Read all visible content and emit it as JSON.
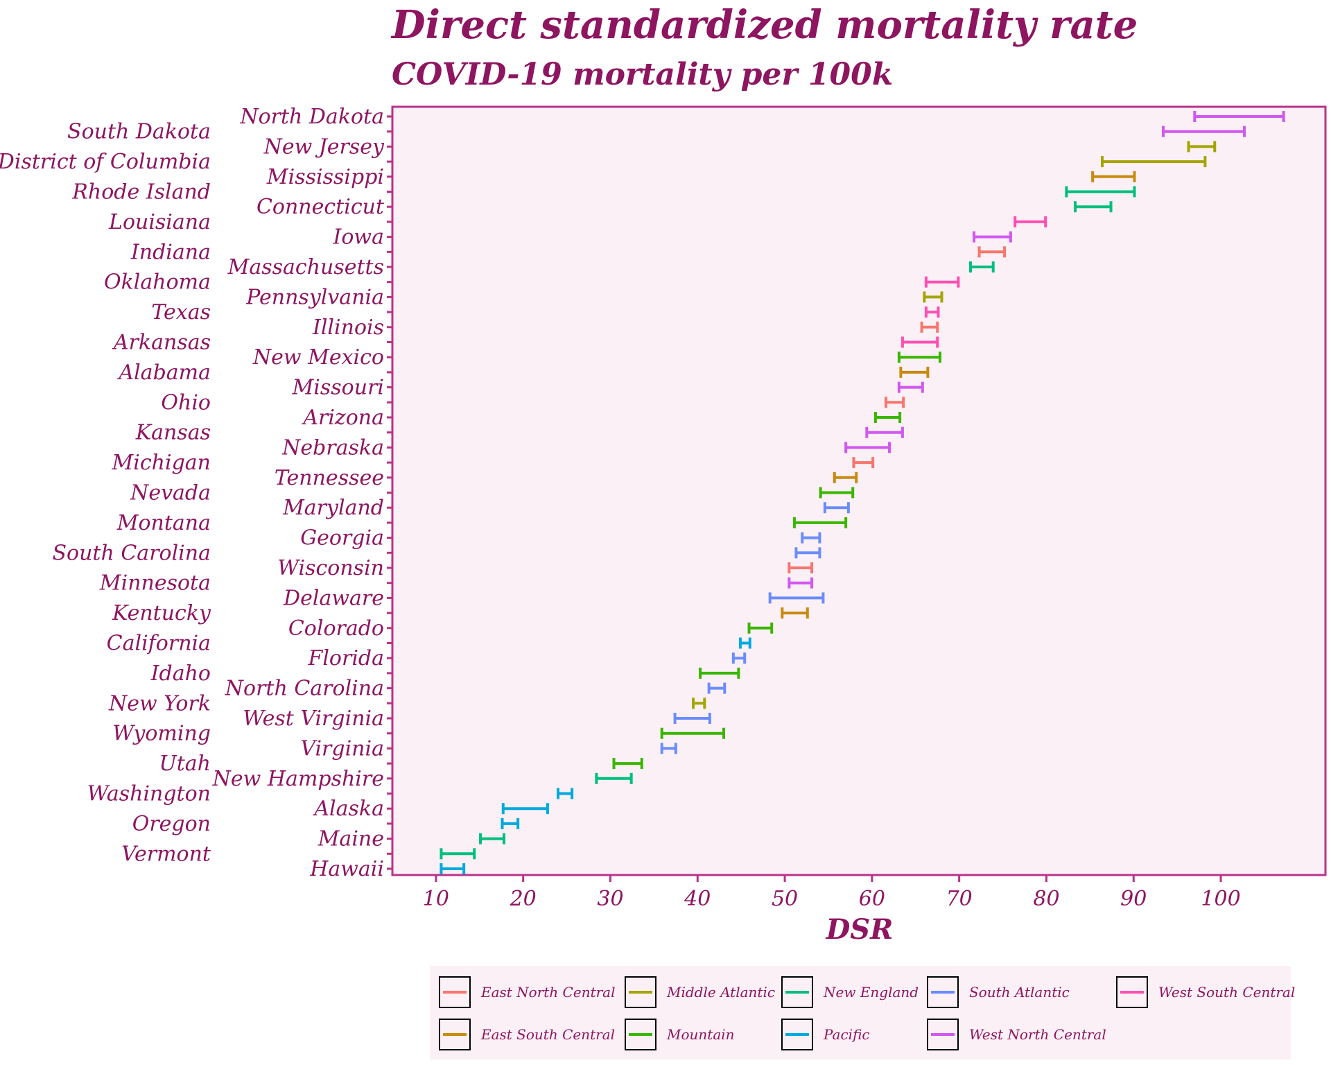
{
  "chart_data": {
    "type": "errorbar",
    "title": "Direct standardized mortality rate",
    "subtitle": "COVID-19 mortality per 100k",
    "xlabel": "DSR",
    "xlim": [
      5,
      112
    ],
    "xticks": [
      10,
      20,
      30,
      40,
      50,
      60,
      70,
      80,
      90,
      100
    ],
    "grid": false,
    "legend_position": "bottom",
    "colors": {
      "East North Central": "#f8766d",
      "Middle Atlantic": "#a3a500",
      "New England": "#00bf7d",
      "South Atlantic": "#6b8cff",
      "West South Central": "#ff4fb2",
      "East South Central": "#c88a10",
      "Mountain": "#39b600",
      "Pacific": "#00a9e0",
      "West North Central": "#d257f0"
    },
    "legend": [
      "East North Central",
      "Middle Atlantic",
      "New England",
      "South Atlantic",
      "West South Central",
      "East South Central",
      "Mountain",
      "Pacific",
      "West North Central"
    ],
    "series": [
      {
        "state": "North Dakota",
        "division": "West North Central",
        "low": 97.0,
        "high": 107.2
      },
      {
        "state": "South Dakota",
        "division": "West North Central",
        "low": 93.4,
        "high": 102.7
      },
      {
        "state": "New Jersey",
        "division": "Middle Atlantic",
        "low": 96.3,
        "high": 99.3
      },
      {
        "state": "District of Columbia",
        "division": "Middle Atlantic",
        "low": 86.4,
        "high": 98.2
      },
      {
        "state": "Mississippi",
        "division": "East South Central",
        "low": 85.3,
        "high": 90.1
      },
      {
        "state": "Rhode Island",
        "division": "New England",
        "low": 82.3,
        "high": 90.1
      },
      {
        "state": "Connecticut",
        "division": "New England",
        "low": 83.3,
        "high": 87.4
      },
      {
        "state": "Louisiana",
        "division": "West South Central",
        "low": 76.4,
        "high": 79.9
      },
      {
        "state": "Iowa",
        "division": "West North Central",
        "low": 71.7,
        "high": 75.9
      },
      {
        "state": "Indiana",
        "division": "East North Central",
        "low": 72.3,
        "high": 75.2
      },
      {
        "state": "Massachusetts",
        "division": "New England",
        "low": 71.3,
        "high": 73.9
      },
      {
        "state": "Oklahoma",
        "division": "West South Central",
        "low": 66.2,
        "high": 69.9
      },
      {
        "state": "Pennsylvania",
        "division": "Middle Atlantic",
        "low": 66.0,
        "high": 68.0
      },
      {
        "state": "Texas",
        "division": "West South Central",
        "low": 66.2,
        "high": 67.6
      },
      {
        "state": "Illinois",
        "division": "East North Central",
        "low": 65.7,
        "high": 67.5
      },
      {
        "state": "Arkansas",
        "division": "West South Central",
        "low": 63.5,
        "high": 67.5
      },
      {
        "state": "New Mexico",
        "division": "Mountain",
        "low": 63.1,
        "high": 67.8
      },
      {
        "state": "Alabama",
        "division": "East South Central",
        "low": 63.3,
        "high": 66.4
      },
      {
        "state": "Missouri",
        "division": "West North Central",
        "low": 63.1,
        "high": 65.8
      },
      {
        "state": "Ohio",
        "division": "East North Central",
        "low": 61.6,
        "high": 63.6
      },
      {
        "state": "Arizona",
        "division": "Mountain",
        "low": 60.4,
        "high": 63.2
      },
      {
        "state": "Kansas",
        "division": "West North Central",
        "low": 59.4,
        "high": 63.5
      },
      {
        "state": "Nebraska",
        "division": "West North Central",
        "low": 57.0,
        "high": 62.0
      },
      {
        "state": "Michigan",
        "division": "East North Central",
        "low": 57.9,
        "high": 60.1
      },
      {
        "state": "Tennessee",
        "division": "East South Central",
        "low": 55.7,
        "high": 58.2
      },
      {
        "state": "Nevada",
        "division": "Mountain",
        "low": 54.1,
        "high": 57.8
      },
      {
        "state": "Maryland",
        "division": "South Atlantic",
        "low": 54.6,
        "high": 57.3
      },
      {
        "state": "Montana",
        "division": "Mountain",
        "low": 51.1,
        "high": 57.0
      },
      {
        "state": "Georgia",
        "division": "South Atlantic",
        "low": 52.0,
        "high": 54.0
      },
      {
        "state": "South Carolina",
        "division": "South Atlantic",
        "low": 51.3,
        "high": 54.0
      },
      {
        "state": "Wisconsin",
        "division": "East North Central",
        "low": 50.5,
        "high": 53.1
      },
      {
        "state": "Minnesota",
        "division": "West North Central",
        "low": 50.5,
        "high": 53.1
      },
      {
        "state": "Delaware",
        "division": "South Atlantic",
        "low": 48.3,
        "high": 54.4
      },
      {
        "state": "Kentucky",
        "division": "East South Central",
        "low": 49.7,
        "high": 52.6
      },
      {
        "state": "Colorado",
        "division": "Mountain",
        "low": 45.9,
        "high": 48.5
      },
      {
        "state": "California",
        "division": "Pacific",
        "low": 44.9,
        "high": 46.0
      },
      {
        "state": "Florida",
        "division": "South Atlantic",
        "low": 44.1,
        "high": 45.4
      },
      {
        "state": "Idaho",
        "division": "Mountain",
        "low": 40.3,
        "high": 44.7
      },
      {
        "state": "North Carolina",
        "division": "South Atlantic",
        "low": 41.3,
        "high": 43.1
      },
      {
        "state": "New York",
        "division": "Middle Atlantic",
        "low": 39.5,
        "high": 40.8
      },
      {
        "state": "West Virginia",
        "division": "South Atlantic",
        "low": 37.4,
        "high": 41.4
      },
      {
        "state": "Wyoming",
        "division": "Mountain",
        "low": 35.9,
        "high": 43.0
      },
      {
        "state": "Virginia",
        "division": "South Atlantic",
        "low": 35.9,
        "high": 37.5
      },
      {
        "state": "Utah",
        "division": "Mountain",
        "low": 30.4,
        "high": 33.6
      },
      {
        "state": "New Hampshire",
        "division": "New England",
        "low": 28.4,
        "high": 32.4
      },
      {
        "state": "Washington",
        "division": "Pacific",
        "low": 24.0,
        "high": 25.6
      },
      {
        "state": "Alaska",
        "division": "Pacific",
        "low": 17.7,
        "high": 22.8
      },
      {
        "state": "Oregon",
        "division": "Pacific",
        "low": 17.6,
        "high": 19.4
      },
      {
        "state": "Maine",
        "division": "New England",
        "low": 15.1,
        "high": 17.8
      },
      {
        "state": "Vermont",
        "division": "New England",
        "low": 10.6,
        "high": 14.4
      },
      {
        "state": "Hawaii",
        "division": "Pacific",
        "low": 10.6,
        "high": 13.2
      }
    ]
  }
}
